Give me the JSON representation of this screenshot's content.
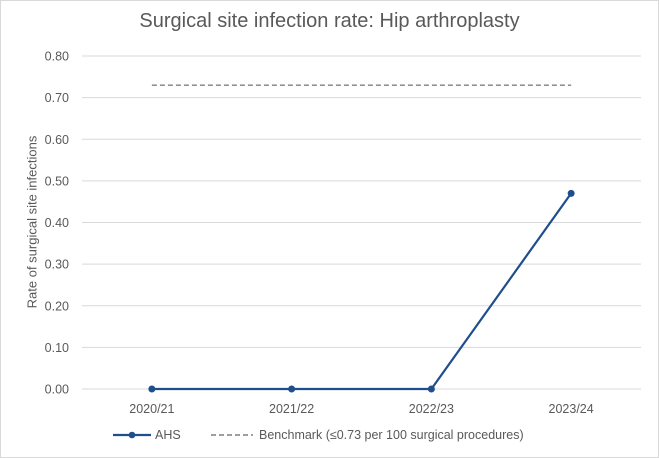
{
  "chart_data": {
    "type": "line",
    "title": "Surgical site infection rate: Hip arthroplasty",
    "xlabel": "",
    "ylabel": "Rate of surgical site infections",
    "categories": [
      "2020/21",
      "2021/22",
      "2022/23",
      "2023/24"
    ],
    "ylim": [
      0,
      0.8
    ],
    "yticks": [
      "0.00",
      "0.10",
      "0.20",
      "0.30",
      "0.40",
      "0.50",
      "0.60",
      "0.70",
      "0.80"
    ],
    "grid": true,
    "legend_position": "bottom",
    "series": [
      {
        "name": "AHS",
        "values": [
          0.0,
          0.0,
          0.0,
          0.47
        ],
        "color": "#1f4e8c",
        "style": "solid-markers"
      }
    ],
    "benchmark": {
      "name": "Benchmark (≤0.73 per 100 surgical procedures)",
      "value": 0.73,
      "color": "#7f7f7f",
      "style": "dashed"
    }
  }
}
